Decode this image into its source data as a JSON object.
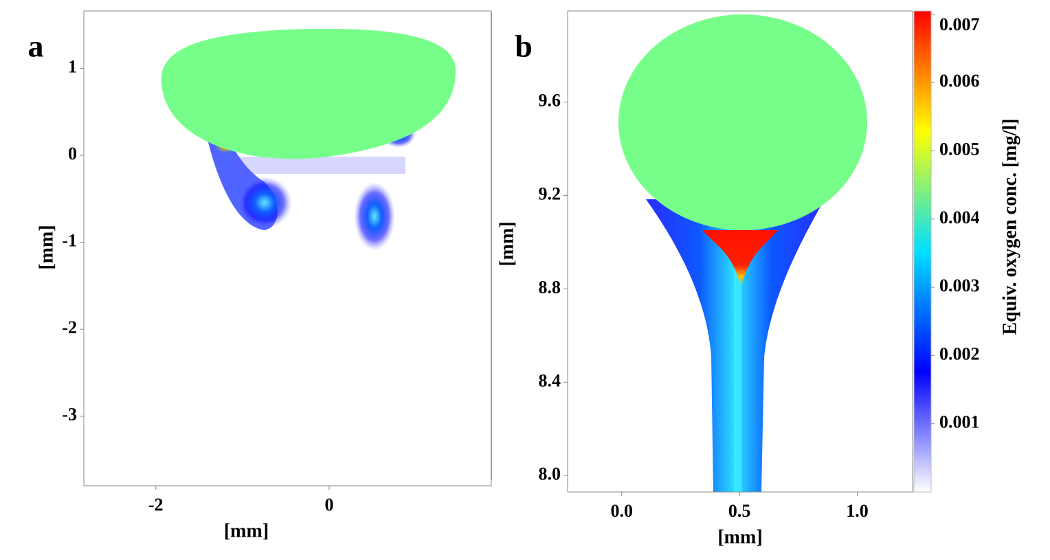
{
  "chart_data": [
    {
      "type": "heatmap",
      "panel_label": "a",
      "xlabel": "[mm]",
      "ylabel": "[mm]",
      "xlim": [
        -2.83,
        1.87
      ],
      "ylim": [
        -3.8,
        1.66
      ],
      "xticks": [
        -2,
        0
      ],
      "yticks": [
        1,
        0,
        -1,
        -2,
        -3
      ]
    },
    {
      "type": "heatmap",
      "panel_label": "b",
      "xlabel": "[mm]",
      "ylabel": "[mm]",
      "xlim": [
        -0.23,
        1.235
      ],
      "ylim": [
        7.93,
        9.99
      ],
      "xticks": [
        {
          "value": 0,
          "label": "0.0"
        },
        0.5,
        {
          "value": 1,
          "label": "1.0"
        }
      ],
      "yticks": [
        9.6,
        9.2,
        8.8,
        {
          "value": 8,
          "label": "8.0"
        },
        8.4
      ],
      "colorbar": {
        "label": "Equiv. oxygen conc. [mg/l]",
        "lim": [
          0,
          0.00705
        ],
        "ticks": [
          0.007,
          0.006,
          0.005,
          0.004,
          0.003,
          0.002,
          0.001
        ],
        "colors": [
          "#ffffff",
          "#0000ff",
          "#00e0ff",
          "#ffff00",
          "#ff0000"
        ]
      }
    }
  ]
}
